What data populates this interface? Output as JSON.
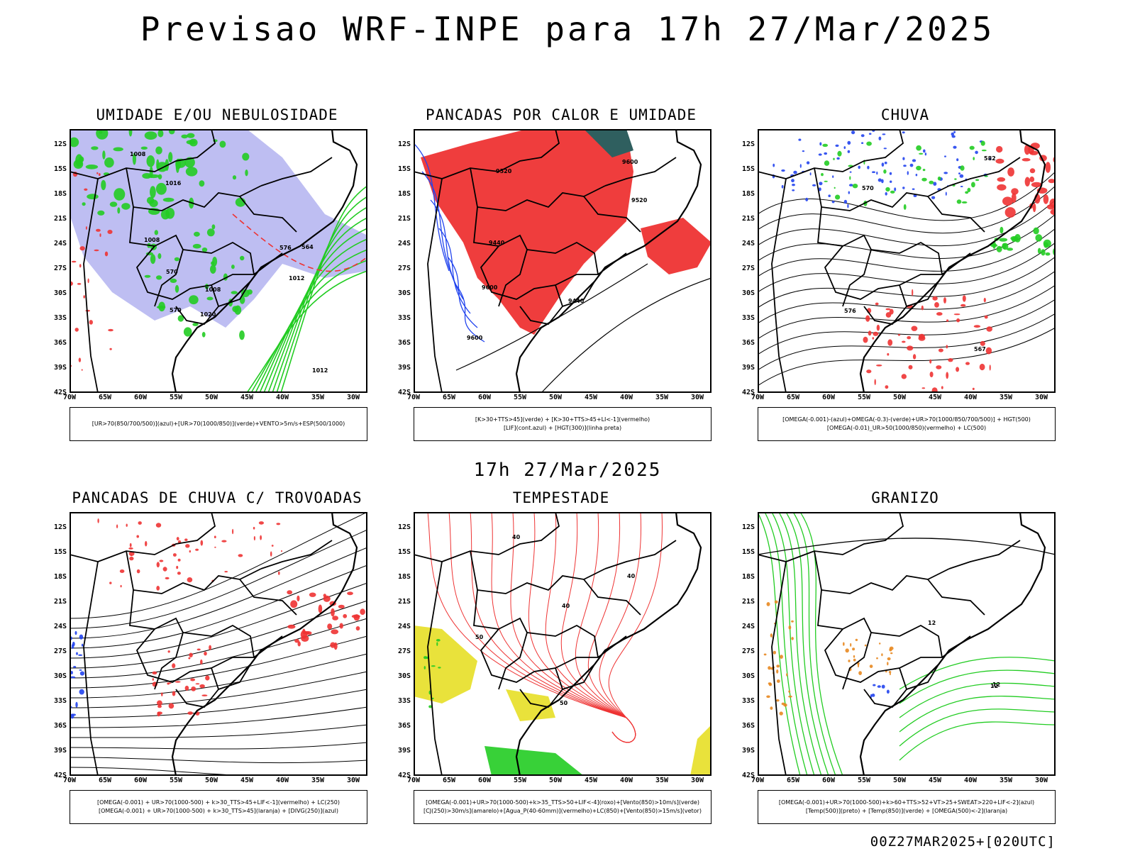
{
  "title": "Previsao WRF-INPE  para 17h 27/Mar/2025",
  "mid_date": "17h 27/Mar/2025",
  "footer": "00Z27MAR2025+[020UTC]",
  "lat_labels": [
    "12S",
    "15S",
    "18S",
    "21S",
    "24S",
    "27S",
    "30S",
    "33S",
    "36S",
    "39S",
    "42S"
  ],
  "lon_labels": [
    "70W",
    "65W",
    "60W",
    "55W",
    "50W",
    "45W",
    "40W",
    "35W",
    "30W"
  ],
  "colors": {
    "purple": "#a8a8ee",
    "green": "#22cc22",
    "red": "#ee3333",
    "blue": "#2244ee",
    "yellow": "#e8e030",
    "orange": "#e88820",
    "teal": "#2f5f5f"
  },
  "panels": [
    {
      "title": "UMIDADE E/OU NEBULOSIDADE",
      "legend": [
        "[UR>70(850/700/500)](azul)+[UR>70(1000/850)](verde)+VENTO>5m/s+ESP(500/1000)"
      ],
      "map_labels": [
        "1008",
        "1008",
        "1008",
        "1012",
        "1012",
        "1016",
        "1020",
        "570",
        "570",
        "576",
        "564"
      ]
    },
    {
      "title": "PANCADAS POR CALOR E UMIDADE",
      "legend": [
        "[K>30+TTS>45](verde) + [K>30+TTS>45+LI<-1](vermelho)",
        "[LIF](cont.azul) + [HGT(300)](linha preta)"
      ],
      "map_labels": [
        "9600",
        "9600",
        "9520",
        "9520",
        "9440",
        "9440",
        "9600"
      ]
    },
    {
      "title": "CHUVA",
      "legend": [
        "[OMEGA(-0.001)-(azul)+OMEGA(-0.3)-(verde)+UR>70(1000/850/700/500)] + HGT(500)",
        "[OMEGA(-0.01)_UR>50(1000/850)(vermelho) + LC(500)"
      ],
      "map_labels": [
        "582",
        "576",
        "570",
        "567"
      ]
    },
    {
      "title": "PANCADAS DE CHUVA C/ TROVOADAS",
      "legend": [
        "[OMEGA(-0.001) + UR>70(1000-500) + k>30_TTS>45+LIF<-1](vermelho) + LC(250)",
        "[OMEGA(-0.001) + UR>70(1000-500) + k>30_TTS>45](laranja) + [DIVG(250)](azul)"
      ],
      "map_labels": []
    },
    {
      "title": "TEMPESTADE",
      "legend": [
        "[OMEGA(-0.001)+UR>70(1000-500)+k>35_TTS>50+LIF<-4](roxo)+[Vento(850)>10m/s](verde)",
        "[CJ(250)>30m/s](amarelo)+[Agua_P(40-60mm)](vermelho)+LC(850)+[Vento(850)>15m/s](vetor)"
      ],
      "map_labels": [
        "50",
        "40",
        "40",
        "40",
        "50"
      ]
    },
    {
      "title": "GRANIZO",
      "legend": [
        "[OMEGA(-0.001)+UR>70(1000-500)+k>60+TTS>52+VT>25+SWEAT>220+LIF<-2](azul)",
        "[Temp(500)](preto) + [Temp(850)](verde) + [OMEGA(500)<-2](laranja)"
      ],
      "map_labels": [
        "12",
        "12",
        "12"
      ]
    }
  ]
}
